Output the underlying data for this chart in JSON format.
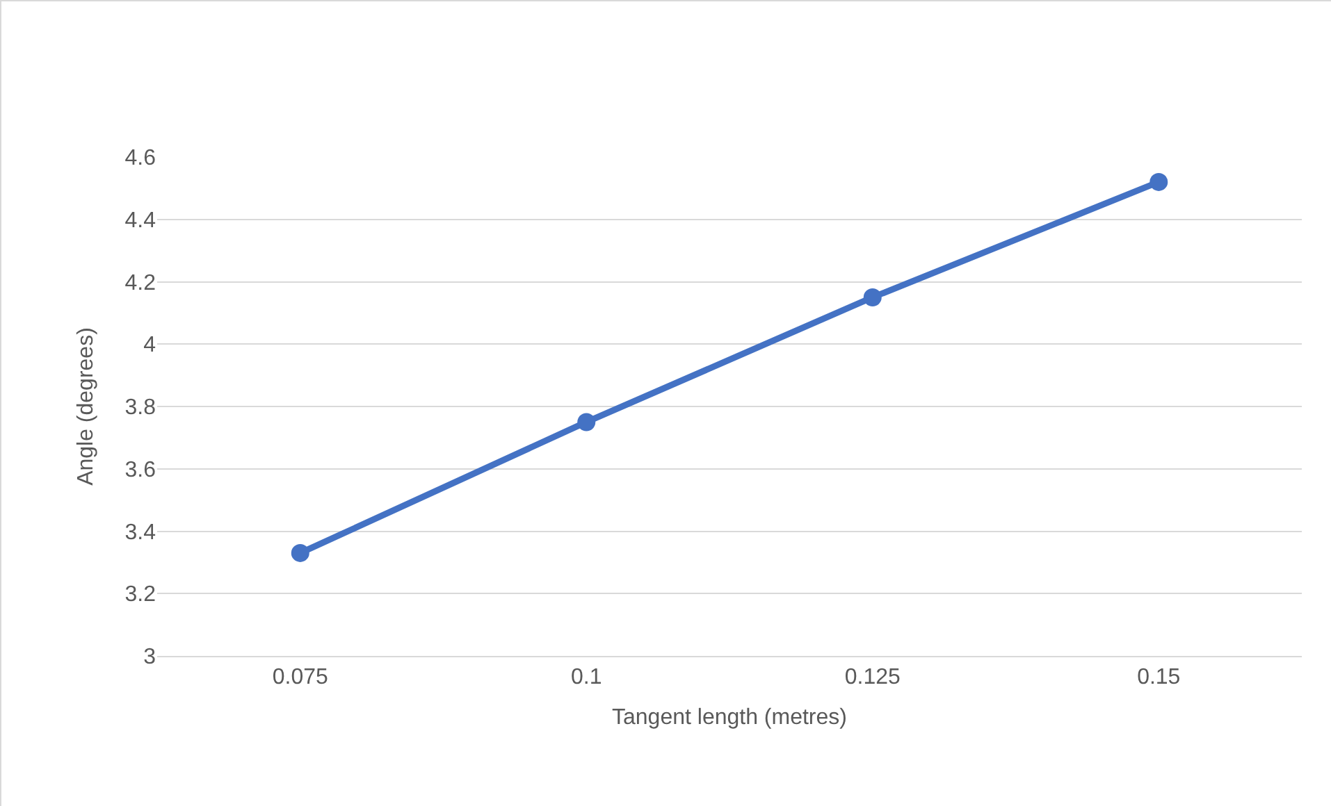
{
  "chart_data": {
    "type": "line",
    "xlabel": "Tangent length (metres)",
    "ylabel": "Angle (degrees)",
    "categories": [
      "0.075",
      "0.1",
      "0.125",
      "0.15"
    ],
    "series": [
      {
        "color": "#4472c4",
        "values": [
          3.33,
          3.75,
          4.15,
          4.52
        ]
      }
    ],
    "ylim": [
      3,
      4.6
    ],
    "yticks": [
      3,
      3.2,
      3.4,
      3.6,
      3.8,
      4,
      4.2,
      4.4,
      4.6
    ],
    "grid": "y",
    "legend": false,
    "marker": "circle",
    "line_style": "solid"
  }
}
